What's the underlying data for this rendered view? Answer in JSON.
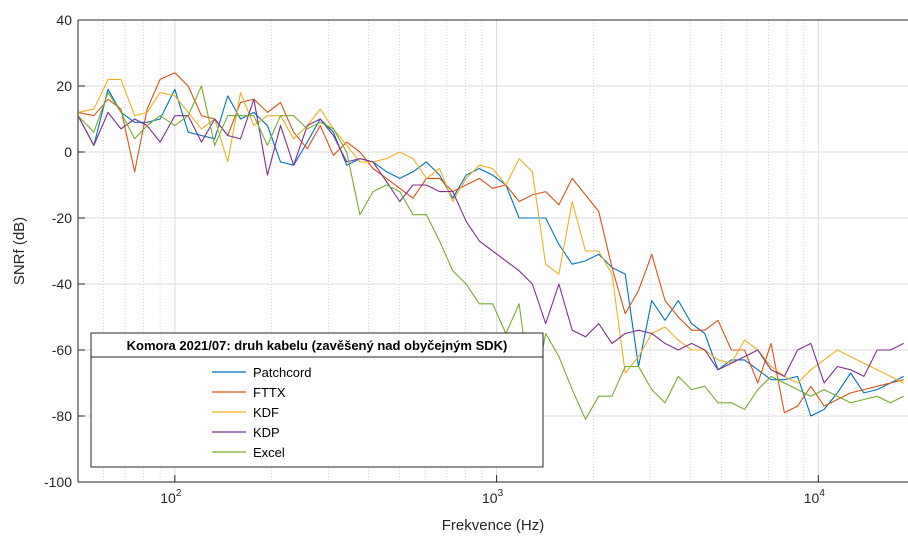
{
  "chart_data": {
    "type": "line",
    "xscale": "log",
    "xlim": [
      50,
      19000
    ],
    "ylim": [
      -100,
      40
    ],
    "xlabel": "Frekvence (Hz)",
    "ylabel": "SNRf (dB)",
    "grid": true,
    "legend_title": "Komora 2021/07: druh kabelu (zavěšený nad obyčejným SDK)",
    "legend_position": "bottom-left",
    "y_ticks": [
      40,
      20,
      0,
      -20,
      -40,
      -60,
      -80,
      -100
    ],
    "x_ticks": [
      {
        "value": 100,
        "base": "10",
        "exp": "2"
      },
      {
        "value": 1000,
        "base": "10",
        "exp": "3"
      },
      {
        "value": 10000,
        "base": "10",
        "exp": "4"
      }
    ],
    "x": [
      50,
      56,
      62,
      68,
      75,
      82,
      90,
      100,
      110,
      121,
      133,
      146,
      160,
      176,
      194,
      213,
      234,
      258,
      283,
      311,
      342,
      376,
      413,
      455,
      500,
      550,
      605,
      665,
      731,
      804,
      884,
      972,
      1069,
      1175,
      1292,
      1421,
      1562,
      1718,
      1889,
      2077,
      2284,
      2511,
      2761,
      3036,
      3338,
      3670,
      4036,
      4437,
      4879,
      5365,
      5899,
      6486,
      7132,
      7842,
      8622,
      9481,
      10425,
      11462,
      12603,
      13858,
      15237,
      16754,
      18422
    ],
    "series": [
      {
        "name": "Patchcord",
        "color": "#0072BD",
        "values": [
          11,
          2,
          19,
          12,
          9,
          9,
          10,
          19,
          6,
          5,
          4,
          17,
          10,
          12,
          8,
          -3,
          -4,
          3,
          10,
          6,
          -4,
          -2,
          -3,
          -6,
          -8,
          -6,
          -3,
          -7,
          -14,
          -7,
          -5,
          -7,
          -10,
          -20,
          -20,
          -20,
          -28,
          -34,
          -33,
          -31,
          -35,
          -37,
          -65,
          -45,
          -51,
          -45,
          -52,
          -55,
          -66,
          -63,
          -63,
          -66,
          -69,
          -69,
          -68,
          -80,
          -78,
          -73,
          -67,
          -73,
          -72,
          -70,
          -68
        ]
      },
      {
        "name": "FTTX",
        "color": "#D95319",
        "values": [
          12,
          11,
          16,
          13,
          -6,
          13,
          22,
          24,
          20,
          11,
          10,
          5,
          15,
          16,
          12,
          15,
          6,
          1,
          8,
          -1,
          3,
          0,
          -5,
          -8,
          -11,
          -14,
          -8,
          -8,
          -12,
          -10,
          -8,
          -11,
          -10,
          -15,
          -13,
          -12,
          -16,
          -8,
          -13,
          -18,
          -35,
          -49,
          -42,
          -31,
          -45,
          -50,
          -54,
          -54,
          -51,
          -60,
          -60,
          -70,
          -58,
          -79,
          -77,
          -71,
          -77,
          -75,
          -73,
          -72,
          -71,
          -70,
          -69
        ]
      },
      {
        "name": "KDF",
        "color": "#EDB120",
        "values": [
          12,
          13,
          22,
          22,
          11,
          12,
          18,
          17,
          12,
          7,
          10,
          -3,
          18,
          8,
          11,
          11,
          4,
          8,
          13,
          7,
          2,
          -3,
          -3,
          -2,
          0,
          -2,
          -8,
          -5,
          -15,
          -8,
          -4,
          -5,
          -10,
          -2,
          -6,
          -34,
          -37,
          -15,
          -30,
          -30,
          -37,
          -67,
          -62,
          -55,
          -53,
          -57,
          -60,
          -60,
          -63,
          -64,
          -57,
          -60,
          -65,
          -68,
          -70,
          -66,
          -63,
          -60,
          -62,
          -64,
          -66,
          -68,
          -70
        ]
      },
      {
        "name": "KDP",
        "color": "#7E2F8E",
        "values": [
          11,
          2,
          12,
          7,
          10,
          8,
          3,
          11,
          11,
          3,
          10,
          5,
          4,
          16,
          -7,
          8,
          -4,
          8,
          10,
          5,
          -3,
          -2,
          -3,
          -9,
          -15,
          -10,
          -10,
          -12,
          -12,
          -21,
          -27,
          -30,
          -33,
          -36,
          -40,
          -52,
          -40,
          -54,
          -56,
          -52,
          -58,
          -55,
          -54,
          -55,
          -58,
          -60,
          -58,
          -60,
          -66,
          -64,
          -62,
          -60,
          -66,
          -68,
          -60,
          -58,
          -70,
          -65,
          -66,
          -68,
          -60,
          -60,
          -58
        ]
      },
      {
        "name": "Excel",
        "color": "#77AC30",
        "values": [
          11,
          6,
          18,
          12,
          4,
          8,
          11,
          8,
          11,
          20,
          2,
          11,
          11,
          11,
          2,
          11,
          11,
          7,
          9,
          7,
          0,
          -19,
          -12,
          -10,
          -12,
          -19,
          -19,
          -27,
          -36,
          -40,
          -46,
          -46,
          -55,
          -46,
          -76,
          -55,
          -62,
          -72,
          -81,
          -74,
          -74,
          -65,
          -65,
          -72,
          -76,
          -68,
          -72,
          -71,
          -76,
          -76,
          -78,
          -72,
          -68,
          -70,
          -72,
          -74,
          -72,
          -74,
          -76,
          -75,
          -74,
          -76,
          -74
        ]
      }
    ]
  }
}
